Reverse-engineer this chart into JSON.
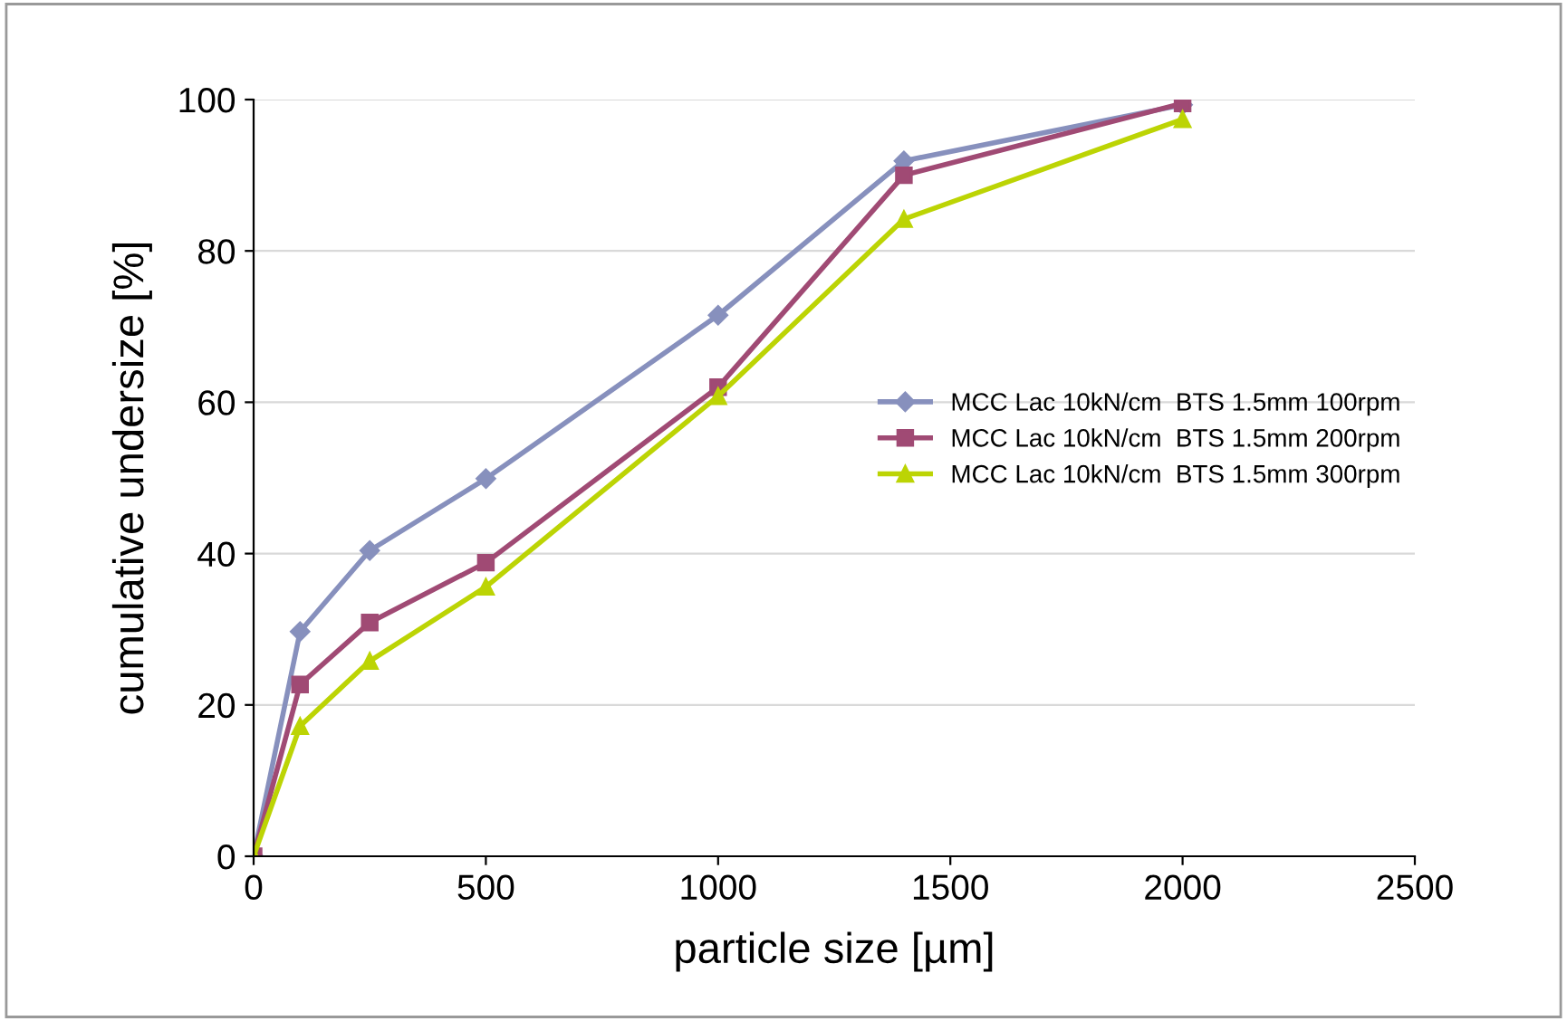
{
  "chart_data": {
    "type": "line",
    "xlabel": "particle size [µm]",
    "ylabel": "cumulative undersize [%]",
    "x": [
      0,
      100,
      250,
      500,
      1000,
      1400,
      2000
    ],
    "series": [
      {
        "name": "MCC Lac 10kN/cm  BTS 1.5mm 100rpm",
        "color": "#8790bd",
        "marker": "diamond",
        "values": [
          0,
          29.7,
          40.4,
          49.9,
          71.5,
          91.9,
          99.3
        ]
      },
      {
        "name": "MCC Lac 10kN/cm  BTS 1.5mm 200rpm",
        "color": "#a04a74",
        "marker": "square",
        "values": [
          0,
          22.7,
          30.9,
          38.8,
          62.0,
          90.0,
          99.5
        ]
      },
      {
        "name": "MCC Lac 10kN/cm  BTS 1.5mm 300rpm",
        "color": "#bcd404",
        "marker": "triangle",
        "values": [
          0,
          17.2,
          25.8,
          35.6,
          60.8,
          84.2,
          97.4
        ]
      }
    ],
    "xlim": [
      0,
      2500
    ],
    "xticks": [
      0,
      500,
      1000,
      1500,
      2000,
      2500
    ],
    "ylim": [
      0,
      100
    ],
    "yticks": [
      0,
      20,
      40,
      60,
      80,
      100
    ],
    "grid": "y",
    "legend": "right",
    "line_style": "solid"
  }
}
